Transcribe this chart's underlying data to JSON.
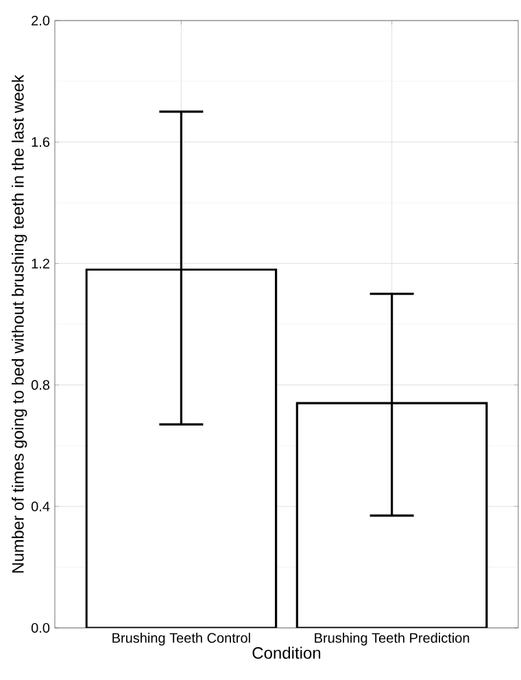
{
  "chart_data": {
    "type": "bar",
    "xlabel": "Condition",
    "ylabel": "Number of times going to bed without brushing teeth in the last week",
    "categories": [
      "Brushing Teeth Control",
      "Brushing Teeth Prediction"
    ],
    "values": [
      1.18,
      0.74
    ],
    "errors": [
      [
        0.67,
        1.7
      ],
      [
        0.37,
        1.1
      ]
    ],
    "color": "#ffffff",
    "ylim": [
      0,
      2.0
    ],
    "yticks": [
      {
        "value": 0,
        "label": "0.0"
      },
      {
        "value": 0.4,
        "label": "0.4"
      },
      {
        "value": 0.8,
        "label": "0.8"
      },
      {
        "value": 1.2,
        "label": "1.2"
      },
      {
        "value": 1.6,
        "label": "1.6"
      },
      {
        "value": 2.0,
        "label": "2.0"
      }
    ],
    "grid": true
  }
}
